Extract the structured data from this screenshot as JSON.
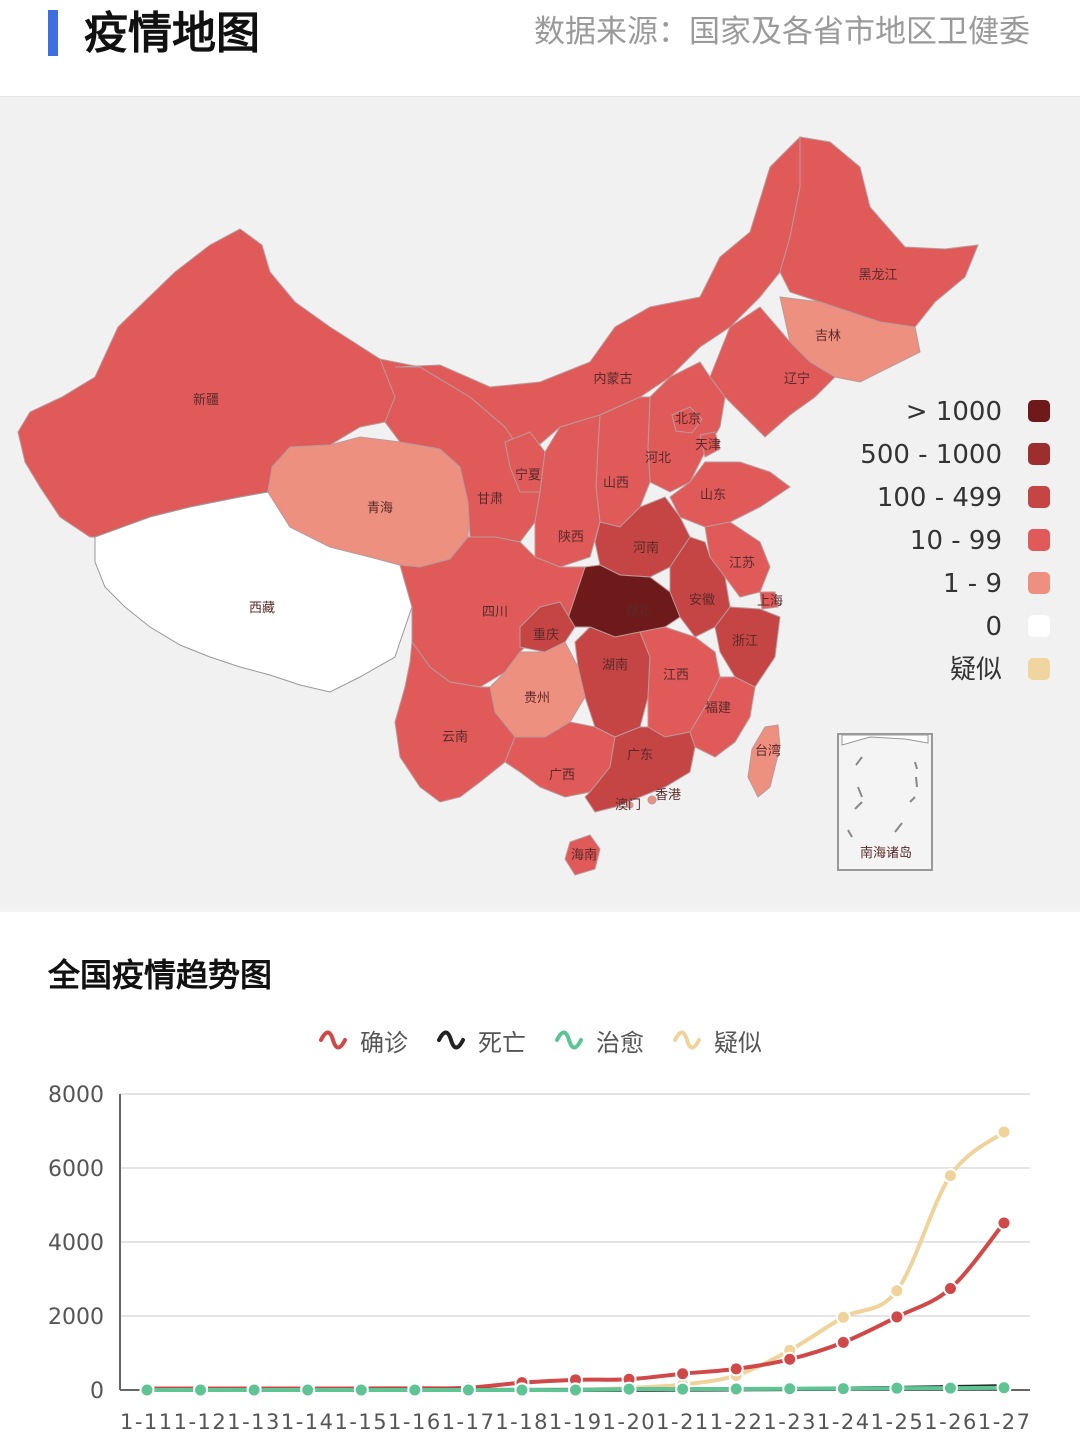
{
  "header": {
    "title": "疫情地图",
    "source": "数据来源：国家及各省市地区卫健委"
  },
  "map": {
    "inset_label": "南海诸岛",
    "provinces": [
      {
        "name": "新疆",
        "level": "10 - 99"
      },
      {
        "name": "西藏",
        "level": "0"
      },
      {
        "name": "青海",
        "level": "1 - 9"
      },
      {
        "name": "甘肃",
        "level": "10 - 99"
      },
      {
        "name": "内蒙古",
        "level": "10 - 99"
      },
      {
        "name": "黑龙江",
        "level": "10 - 99"
      },
      {
        "name": "吉林",
        "level": "1 - 9"
      },
      {
        "name": "辽宁",
        "level": "10 - 99"
      },
      {
        "name": "北京",
        "level": "10 - 99"
      },
      {
        "name": "天津",
        "level": "10 - 99"
      },
      {
        "name": "河北",
        "level": "10 - 99"
      },
      {
        "name": "山西",
        "level": "10 - 99"
      },
      {
        "name": "宁夏",
        "level": "10 - 99"
      },
      {
        "name": "陕西",
        "level": "10 - 99"
      },
      {
        "name": "山东",
        "level": "10 - 99"
      },
      {
        "name": "河南",
        "level": "100 - 499"
      },
      {
        "name": "江苏",
        "level": "10 - 99"
      },
      {
        "name": "安徽",
        "level": "100 - 499"
      },
      {
        "name": "上海",
        "level": "10 - 99"
      },
      {
        "name": "湖北",
        "level": "> 1000"
      },
      {
        "name": "四川",
        "level": "10 - 99"
      },
      {
        "name": "重庆",
        "level": "100 - 499"
      },
      {
        "name": "浙江",
        "level": "100 - 499"
      },
      {
        "name": "湖南",
        "level": "100 - 499"
      },
      {
        "name": "江西",
        "level": "10 - 99"
      },
      {
        "name": "贵州",
        "level": "1 - 9"
      },
      {
        "name": "云南",
        "level": "10 - 99"
      },
      {
        "name": "福建",
        "level": "10 - 99"
      },
      {
        "name": "台湾",
        "level": "1 - 9"
      },
      {
        "name": "广西",
        "level": "10 - 99"
      },
      {
        "name": "广东",
        "level": "100 - 499"
      },
      {
        "name": "香港",
        "level": "1 - 9"
      },
      {
        "name": "澳门",
        "level": "1 - 9"
      },
      {
        "name": "海南",
        "level": "10 - 99"
      }
    ]
  },
  "legend": [
    {
      "label": "> 1000",
      "color": "#6e1a1a"
    },
    {
      "label": "500 - 1000",
      "color": "#9c2e2e"
    },
    {
      "label": "100 - 499",
      "color": "#c54444"
    },
    {
      "label": "10 - 99",
      "color": "#e05a5a"
    },
    {
      "label": "1 - 9",
      "color": "#ee9080"
    },
    {
      "label": "0",
      "color": "#ffffff"
    },
    {
      "label": "疑似",
      "color": "#f0d59e"
    }
  ],
  "trend": {
    "title": "全国疫情趋势图"
  },
  "chart_data": {
    "type": "line",
    "title": "全国疫情趋势图",
    "categories": [
      "1-11",
      "1-12",
      "1-13",
      "1-14",
      "1-15",
      "1-16",
      "1-17",
      "1-18",
      "1-19",
      "1-20",
      "1-21",
      "1-22",
      "1-23",
      "1-24",
      "1-25",
      "1-26",
      "1-27"
    ],
    "x_tick_text": "1-111-121-131-141-151-161-171-181-191-201-211-221-231-241-251-261-27",
    "ylim": [
      0,
      8000
    ],
    "yticks": [
      "8000",
      "6000",
      "4000",
      "2000",
      "0"
    ],
    "grid": true,
    "legend_position": "top",
    "series": [
      {
        "name": "确诊",
        "color": "#d04848",
        "values": [
          41,
          41,
          41,
          41,
          41,
          45,
          62,
          198,
          275,
          291,
          440,
          571,
          830,
          1287,
          1975,
          2744,
          4515
        ]
      },
      {
        "name": "死亡",
        "color": "#222222",
        "values": [
          1,
          1,
          1,
          1,
          2,
          2,
          2,
          3,
          4,
          6,
          9,
          17,
          25,
          41,
          56,
          80,
          106
        ]
      },
      {
        "name": "治愈",
        "color": "#5ec494",
        "values": [
          0,
          0,
          0,
          0,
          0,
          0,
          0,
          0,
          0,
          25,
          25,
          28,
          34,
          38,
          49,
          51,
          60
        ]
      },
      {
        "name": "疑似",
        "color": "#efd39a",
        "values": [
          null,
          null,
          null,
          null,
          null,
          null,
          null,
          null,
          0,
          54,
          149,
          393,
          1072,
          1965,
          2684,
          5794,
          6973
        ]
      }
    ]
  }
}
